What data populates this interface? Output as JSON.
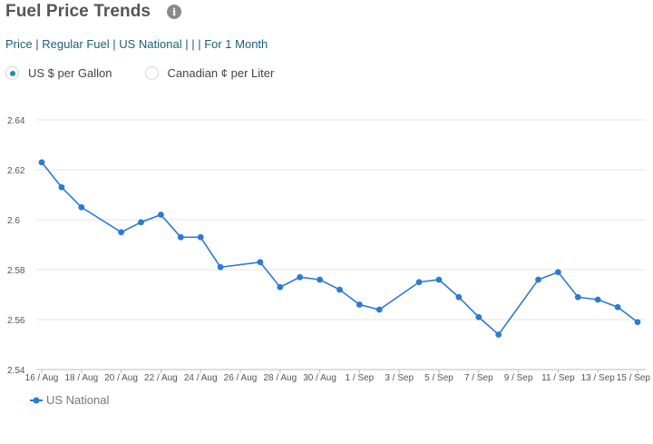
{
  "header": {
    "title": "Fuel Price Trends",
    "info_icon": "info-icon",
    "subtitle": "Price | Regular Fuel | US National | | | For 1 Month"
  },
  "units": {
    "options": [
      {
        "label": "US $ per Gallon",
        "selected": true
      },
      {
        "label": "Canadian ¢ per Liter",
        "selected": false
      }
    ]
  },
  "chart_data": {
    "type": "line",
    "categories": [
      "16 / Aug",
      "17 / Aug",
      "18 / Aug",
      "20 / Aug",
      "21 / Aug",
      "22 / Aug",
      "23 / Aug",
      "24 / Aug",
      "25 / Aug",
      "27 / Aug",
      "28 / Aug",
      "29 / Aug",
      "30 / Aug",
      "31 / Aug",
      "1 / Sep",
      "2 / Sep",
      "4 / Sep",
      "5 / Sep",
      "6 / Sep",
      "7 / Sep",
      "8 / Sep",
      "10 / Sep",
      "11 / Sep",
      "12 / Sep",
      "13 / Sep",
      "14 / Sep",
      "15 / Sep"
    ],
    "x_tick_labels": [
      "16 / Aug",
      "18 / Aug",
      "20 / Aug",
      "22 / Aug",
      "24 / Aug",
      "26 / Aug",
      "28 / Aug",
      "30 / Aug",
      "1 / Sep",
      "3 / Sep",
      "5 / Sep",
      "7 / Sep",
      "9 / Sep",
      "11 / Sep",
      "13 / Sep",
      "15 / Sep"
    ],
    "series": [
      {
        "name": "US National",
        "color": "#2a7bd3",
        "values": [
          2.623,
          2.613,
          2.605,
          2.595,
          2.599,
          2.602,
          2.593,
          2.593,
          2.581,
          2.583,
          2.573,
          2.577,
          2.576,
          2.572,
          2.566,
          2.564,
          2.575,
          2.576,
          2.569,
          2.561,
          2.554,
          2.576,
          2.579,
          2.569,
          2.568,
          2.565,
          2.559
        ]
      }
    ],
    "y_ticks": [
      "2.54",
      "2.56",
      "2.58",
      "2.6",
      "2.62",
      "2.64"
    ],
    "ylim": [
      2.54,
      2.64
    ],
    "grid": true,
    "legend_position": "bottom-left"
  }
}
